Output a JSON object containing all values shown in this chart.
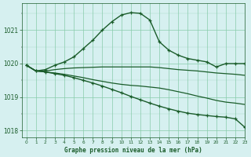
{
  "xlabel": "Graphe pression niveau de la mer (hPa)",
  "ylim": [
    1017.8,
    1021.8
  ],
  "xlim": [
    -0.5,
    23
  ],
  "yticks": [
    1018,
    1019,
    1020,
    1021
  ],
  "xticks": [
    0,
    1,
    2,
    3,
    4,
    5,
    6,
    7,
    8,
    9,
    10,
    11,
    12,
    13,
    14,
    15,
    16,
    17,
    18,
    19,
    20,
    21,
    22,
    23
  ],
  "background_color": "#d6f0f0",
  "grid_color": "#88ccaa",
  "line_color": "#1a5c2a",
  "lines": [
    {
      "x": [
        0,
        1,
        2,
        3,
        4,
        5,
        6,
        7,
        8,
        9,
        10,
        11,
        12,
        13,
        14,
        15,
        16,
        17,
        18,
        19,
        20,
        21,
        22,
        23
      ],
      "y": [
        1019.95,
        1019.78,
        1019.82,
        1019.95,
        1020.05,
        1020.2,
        1020.45,
        1020.7,
        1021.0,
        1021.25,
        1021.45,
        1021.52,
        1021.5,
        1021.3,
        1020.65,
        1020.4,
        1020.25,
        1020.15,
        1020.1,
        1020.05,
        1019.9,
        1020.0,
        1020.0,
        1020.0
      ],
      "marker": true,
      "lw": 1.0
    },
    {
      "x": [
        0,
        1,
        2,
        3,
        4,
        5,
        6,
        7,
        8,
        9,
        10,
        11,
        12,
        13,
        14,
        15,
        16,
        17,
        18,
        19,
        20,
        21,
        22,
        23
      ],
      "y": [
        1019.95,
        1019.78,
        1019.78,
        1019.82,
        1019.85,
        1019.87,
        1019.88,
        1019.89,
        1019.9,
        1019.9,
        1019.9,
        1019.9,
        1019.9,
        1019.9,
        1019.88,
        1019.85,
        1019.82,
        1019.8,
        1019.78,
        1019.75,
        1019.72,
        1019.7,
        1019.68,
        1019.65
      ],
      "marker": false,
      "lw": 0.9
    },
    {
      "x": [
        0,
        1,
        2,
        3,
        4,
        5,
        6,
        7,
        8,
        9,
        10,
        11,
        12,
        13,
        14,
        15,
        16,
        17,
        18,
        19,
        20,
        21,
        22,
        23
      ],
      "y": [
        1019.95,
        1019.78,
        1019.75,
        1019.72,
        1019.68,
        1019.63,
        1019.58,
        1019.52,
        1019.47,
        1019.42,
        1019.38,
        1019.35,
        1019.33,
        1019.3,
        1019.27,
        1019.22,
        1019.16,
        1019.1,
        1019.03,
        1018.97,
        1018.9,
        1018.85,
        1018.82,
        1018.78
      ],
      "marker": false,
      "lw": 0.9
    },
    {
      "x": [
        0,
        1,
        2,
        3,
        4,
        5,
        6,
        7,
        8,
        9,
        10,
        11,
        12,
        13,
        14,
        15,
        16,
        17,
        18,
        19,
        20,
        21,
        22,
        23
      ],
      "y": [
        1019.95,
        1019.78,
        1019.75,
        1019.7,
        1019.65,
        1019.58,
        1019.5,
        1019.42,
        1019.33,
        1019.23,
        1019.13,
        1019.02,
        1018.92,
        1018.82,
        1018.73,
        1018.65,
        1018.58,
        1018.52,
        1018.48,
        1018.45,
        1018.42,
        1018.4,
        1018.35,
        1018.1
      ],
      "marker": true,
      "lw": 1.0
    }
  ]
}
